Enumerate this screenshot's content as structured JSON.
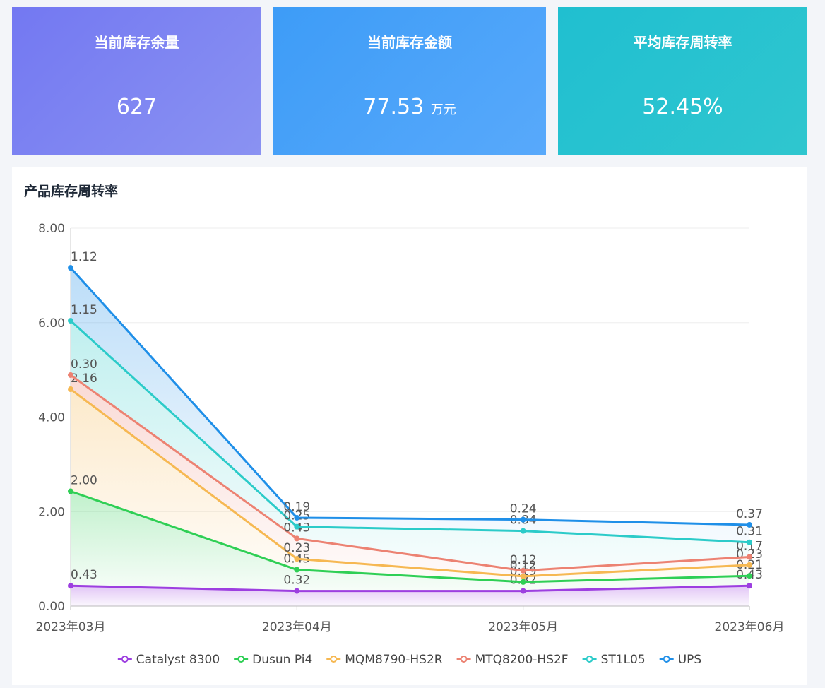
{
  "cards": [
    {
      "title": "当前库存余量",
      "value": "627"
    },
    {
      "title": "当前库存金额",
      "value": "77.53",
      "unit": "万元"
    },
    {
      "title": "平均库存周转率",
      "value": "52.45%"
    }
  ],
  "chart_data": {
    "type": "stacked-area",
    "title": "产品库存周转率",
    "categories": [
      "2023年03月",
      "2023年04月",
      "2023年05月",
      "2023年06月"
    ],
    "ylim": [
      0,
      8
    ],
    "yticks": [
      {
        "value": 0,
        "label": "0.00"
      },
      {
        "value": 2,
        "label": "2.00"
      },
      {
        "value": 4,
        "label": "4.00"
      },
      {
        "value": 6,
        "label": "6.00"
      },
      {
        "value": 8,
        "label": "8.00"
      }
    ],
    "grid": true,
    "series": [
      {
        "name": "Catalyst 8300",
        "color": "#9d3fe0",
        "values": [
          0.43,
          0.32,
          0.32,
          0.43
        ],
        "value_labels": [
          "0.43",
          "0.32",
          "0.32",
          "0.43"
        ]
      },
      {
        "name": "Dusun Pi4",
        "color": "#2fcf55",
        "values": [
          2.0,
          0.45,
          0.19,
          0.21
        ],
        "value_labels": [
          "2.00",
          "0.45",
          "0.19",
          "0.21"
        ]
      },
      {
        "name": "MQM8790-HS2R",
        "color": "#f6b852",
        "values": [
          2.16,
          0.23,
          0.12,
          0.23
        ],
        "value_labels": [
          "2.16",
          "0.23",
          "0.12",
          "0.23"
        ]
      },
      {
        "name": "MTQ8200-HS2F",
        "color": "#ec8272",
        "values": [
          0.3,
          0.43,
          0.12,
          0.17
        ],
        "value_labels": [
          "0.30",
          "0.43",
          "0.12",
          "0.17"
        ]
      },
      {
        "name": "ST1L05",
        "color": "#2ccbc9",
        "values": [
          1.15,
          0.25,
          0.84,
          0.31
        ],
        "value_labels": [
          "1.15",
          "0.25",
          "0.84",
          "0.31"
        ]
      },
      {
        "name": "UPS",
        "color": "#1f8fe8",
        "values": [
          1.12,
          0.19,
          0.24,
          0.37
        ],
        "value_labels": [
          "1.12",
          "0.19",
          "0.24",
          "0.37"
        ]
      }
    ]
  }
}
